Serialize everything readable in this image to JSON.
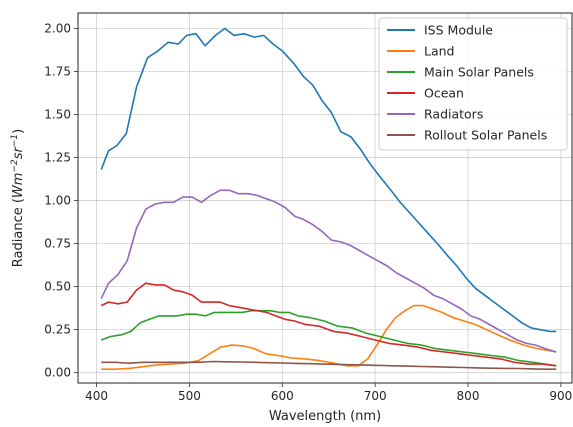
{
  "chart_data": {
    "type": "line",
    "xlabel": "Wavelength (nm)",
    "ylabel_parts": [
      "Radiance (",
      "Wm",
      "−2",
      "sr",
      "−1",
      ")"
    ],
    "xlim": [
      380,
      912
    ],
    "ylim": [
      -0.06,
      2.09
    ],
    "xticks": [
      400,
      500,
      600,
      700,
      800,
      900
    ],
    "yticks": [
      0.0,
      0.25,
      0.5,
      0.75,
      1.0,
      1.25,
      1.5,
      1.75,
      2.0
    ],
    "ytick_labels": [
      "0.00",
      "0.25",
      "0.50",
      "0.75",
      "1.00",
      "1.25",
      "1.50",
      "1.75",
      "2.00"
    ],
    "grid": true,
    "legend_position": "top-right",
    "series": [
      {
        "name": "ISS Module",
        "color": "#1f77b4",
        "x": [
          405,
          413,
          422,
          432,
          443,
          455,
          466,
          477,
          488,
          497,
          507,
          517,
          528,
          538,
          548,
          559,
          570,
          580,
          590,
          600,
          612,
          623,
          633,
          643,
          653,
          663,
          674,
          684,
          695,
          705,
          717,
          727,
          737,
          747,
          757,
          767,
          778,
          788,
          798,
          808,
          818,
          828,
          838,
          848,
          858,
          868,
          878,
          888,
          895
        ],
        "y": [
          1.18,
          1.29,
          1.32,
          1.39,
          1.66,
          1.83,
          1.87,
          1.92,
          1.91,
          1.96,
          1.97,
          1.9,
          1.96,
          2.0,
          1.96,
          1.97,
          1.95,
          1.96,
          1.91,
          1.87,
          1.8,
          1.72,
          1.67,
          1.58,
          1.51,
          1.4,
          1.37,
          1.3,
          1.21,
          1.14,
          1.06,
          0.99,
          0.93,
          0.87,
          0.81,
          0.75,
          0.68,
          0.62,
          0.55,
          0.49,
          0.45,
          0.41,
          0.37,
          0.33,
          0.29,
          0.26,
          0.25,
          0.24,
          0.24
        ]
      },
      {
        "name": "Land",
        "color": "#ff7f0e",
        "x": [
          405,
          420,
          435,
          450,
          465,
          480,
          495,
          510,
          522,
          534,
          546,
          558,
          570,
          582,
          595,
          610,
          625,
          640,
          655,
          670,
          682,
          692,
          702,
          712,
          722,
          732,
          742,
          752,
          762,
          772,
          784,
          796,
          808,
          820,
          832,
          845,
          860,
          875,
          895
        ],
        "y": [
          0.02,
          0.02,
          0.025,
          0.035,
          0.045,
          0.05,
          0.055,
          0.07,
          0.11,
          0.15,
          0.16,
          0.155,
          0.14,
          0.11,
          0.1,
          0.085,
          0.08,
          0.07,
          0.055,
          0.04,
          0.04,
          0.08,
          0.16,
          0.25,
          0.32,
          0.36,
          0.39,
          0.39,
          0.37,
          0.35,
          0.32,
          0.3,
          0.28,
          0.25,
          0.22,
          0.19,
          0.16,
          0.14,
          0.12
        ]
      },
      {
        "name": "Main Solar Panels",
        "color": "#2ca02c",
        "x": [
          405,
          415,
          427,
          437,
          447,
          457,
          467,
          477,
          487,
          497,
          507,
          517,
          527,
          537,
          547,
          557,
          567,
          577,
          587,
          597,
          607,
          617,
          630,
          645,
          660,
          675,
          690,
          705,
          720,
          735,
          750,
          765,
          780,
          795,
          810,
          825,
          840,
          855,
          870,
          895
        ],
        "y": [
          0.19,
          0.21,
          0.22,
          0.24,
          0.29,
          0.31,
          0.33,
          0.33,
          0.33,
          0.34,
          0.34,
          0.33,
          0.35,
          0.35,
          0.35,
          0.35,
          0.36,
          0.36,
          0.36,
          0.35,
          0.35,
          0.33,
          0.32,
          0.3,
          0.27,
          0.26,
          0.23,
          0.21,
          0.19,
          0.17,
          0.16,
          0.14,
          0.13,
          0.12,
          0.11,
          0.1,
          0.09,
          0.07,
          0.06,
          0.04
        ]
      },
      {
        "name": "Ocean",
        "color": "#d62728",
        "x": [
          405,
          413,
          423,
          433,
          443,
          453,
          463,
          473,
          483,
          493,
          503,
          513,
          523,
          533,
          543,
          553,
          563,
          573,
          583,
          593,
          603,
          613,
          625,
          640,
          655,
          670,
          685,
          700,
          715,
          730,
          745,
          760,
          775,
          790,
          805,
          820,
          835,
          850,
          865,
          880,
          895
        ],
        "y": [
          0.39,
          0.41,
          0.4,
          0.41,
          0.48,
          0.52,
          0.51,
          0.51,
          0.48,
          0.47,
          0.45,
          0.41,
          0.41,
          0.41,
          0.39,
          0.38,
          0.37,
          0.36,
          0.35,
          0.33,
          0.31,
          0.3,
          0.28,
          0.27,
          0.24,
          0.23,
          0.21,
          0.19,
          0.17,
          0.16,
          0.15,
          0.13,
          0.12,
          0.11,
          0.1,
          0.09,
          0.08,
          0.06,
          0.05,
          0.05,
          0.04
        ]
      },
      {
        "name": "Radiators",
        "color": "#9467bd",
        "x": [
          405,
          413,
          423,
          433,
          443,
          453,
          463,
          473,
          483,
          493,
          503,
          513,
          523,
          533,
          543,
          553,
          563,
          573,
          583,
          593,
          603,
          613,
          623,
          633,
          643,
          653,
          663,
          673,
          683,
          693,
          703,
          713,
          723,
          733,
          743,
          753,
          763,
          773,
          783,
          793,
          803,
          813,
          823,
          833,
          843,
          853,
          863,
          873,
          883,
          895
        ],
        "y": [
          0.43,
          0.52,
          0.57,
          0.65,
          0.84,
          0.95,
          0.98,
          0.99,
          0.99,
          1.02,
          1.02,
          0.99,
          1.03,
          1.06,
          1.06,
          1.04,
          1.04,
          1.03,
          1.01,
          0.99,
          0.96,
          0.91,
          0.89,
          0.86,
          0.82,
          0.77,
          0.76,
          0.74,
          0.71,
          0.68,
          0.65,
          0.62,
          0.58,
          0.55,
          0.52,
          0.49,
          0.45,
          0.43,
          0.4,
          0.37,
          0.33,
          0.31,
          0.28,
          0.25,
          0.22,
          0.19,
          0.17,
          0.16,
          0.14,
          0.12
        ]
      },
      {
        "name": "Rollout Solar Panels",
        "color": "#8c564b",
        "x": [
          405,
          420,
          435,
          450,
          465,
          480,
          495,
          510,
          525,
          540,
          555,
          570,
          585,
          600,
          615,
          630,
          645,
          660,
          675,
          690,
          705,
          720,
          735,
          750,
          765,
          780,
          795,
          810,
          825,
          840,
          855,
          870,
          885,
          895
        ],
        "y": [
          0.06,
          0.06,
          0.055,
          0.06,
          0.06,
          0.06,
          0.06,
          0.06,
          0.065,
          0.063,
          0.062,
          0.06,
          0.058,
          0.056,
          0.054,
          0.052,
          0.05,
          0.048,
          0.046,
          0.044,
          0.042,
          0.04,
          0.038,
          0.036,
          0.034,
          0.032,
          0.03,
          0.028,
          0.026,
          0.025,
          0.024,
          0.022,
          0.02,
          0.02
        ]
      }
    ]
  }
}
